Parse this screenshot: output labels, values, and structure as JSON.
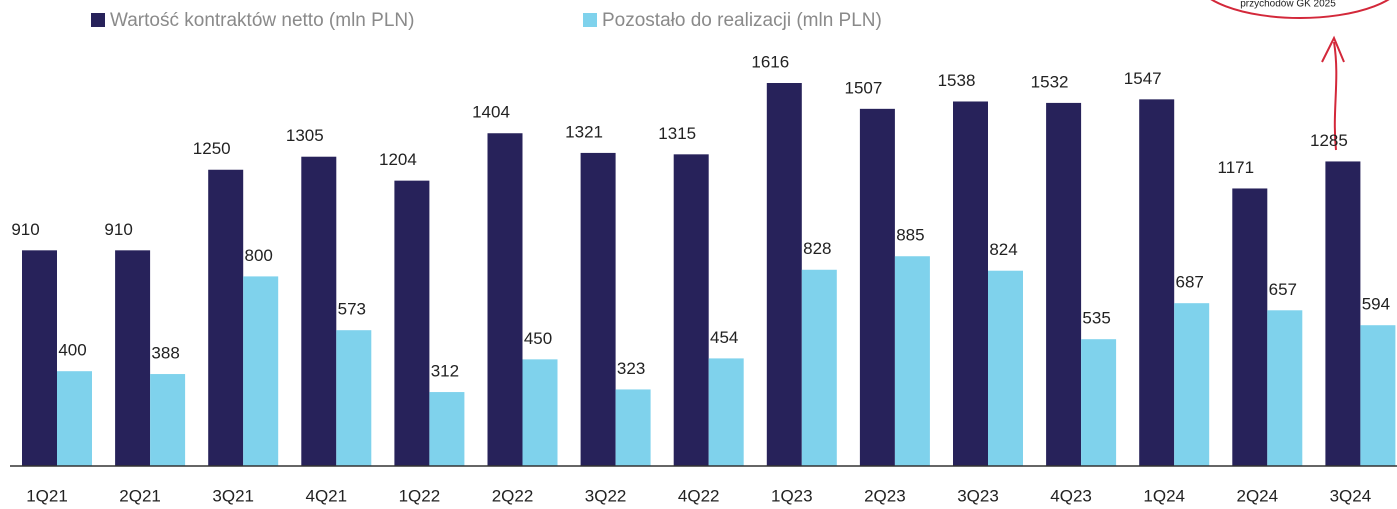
{
  "chart_data": {
    "type": "bar",
    "annotation": "przychodów GK 2025",
    "categories": [
      "1Q21",
      "2Q21",
      "3Q21",
      "4Q21",
      "1Q22",
      "2Q22",
      "3Q22",
      "4Q22",
      "1Q23",
      "2Q23",
      "3Q23",
      "4Q23",
      "1Q24",
      "2Q24",
      "3Q24"
    ],
    "series": [
      {
        "name": "Wartość kontraktów netto (mln PLN)",
        "color": "#27225a",
        "values": [
          910,
          910,
          1250,
          1305,
          1204,
          1404,
          1321,
          1315,
          1616,
          1507,
          1538,
          1532,
          1547,
          1171,
          1285
        ]
      },
      {
        "name": "Pozostało do realizacji (mln PLN)",
        "color": "#7fd2ec",
        "values": [
          400,
          388,
          800,
          573,
          312,
          450,
          323,
          454,
          828,
          885,
          824,
          535,
          687,
          657,
          594
        ]
      }
    ]
  }
}
